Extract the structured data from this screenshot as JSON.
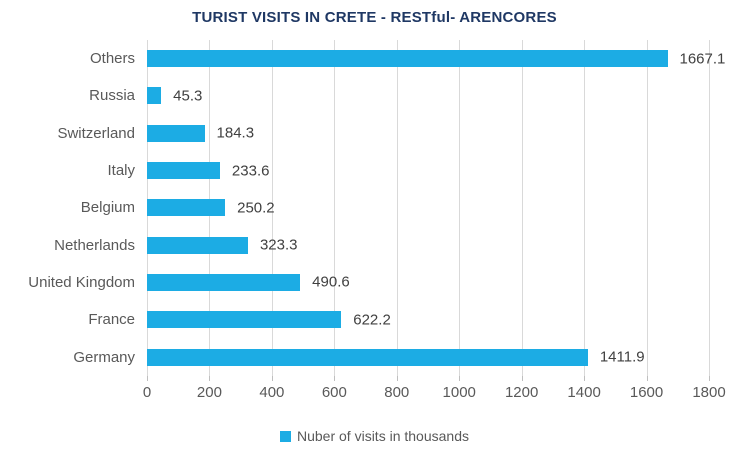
{
  "title": "TURIST VISITS IN CRETE - RESTful- ARENCORES",
  "colors": {
    "bar": "#1CACE4",
    "title": "#1F3864",
    "category_label": "#595959",
    "value_label": "#404040",
    "tick_label": "#595959",
    "gridline": "#D9D9D9",
    "background": "#FFFFFF"
  },
  "legend": {
    "position": "bottom",
    "marker": "square",
    "label": "Nuber of visits in thousands"
  },
  "chart_data": {
    "type": "bar",
    "orientation": "horizontal",
    "title": "TURIST VISITS IN CRETE - RESTful- ARENCORES",
    "categories": [
      "Others",
      "Russia",
      "Switzerland",
      "Italy",
      "Belgium",
      "Netherlands",
      "United Kingdom",
      "France",
      "Germany"
    ],
    "values": [
      1667.1,
      45.3,
      184.3,
      233.6,
      250.2,
      323.3,
      490.6,
      622.2,
      1411.9
    ],
    "value_labels": [
      "1667.1",
      "45.3",
      "184.3",
      "233.6",
      "250.2",
      "323.3",
      "490.6",
      "622.2",
      "1411.9"
    ],
    "xlabel": "",
    "ylabel": "",
    "xlim": [
      0,
      1800
    ],
    "x_ticks": [
      0,
      200,
      400,
      600,
      800,
      1000,
      1200,
      1400,
      1600,
      1800
    ],
    "grid": true,
    "legend_entries": [
      "Nuber of visits in thousands"
    ]
  }
}
